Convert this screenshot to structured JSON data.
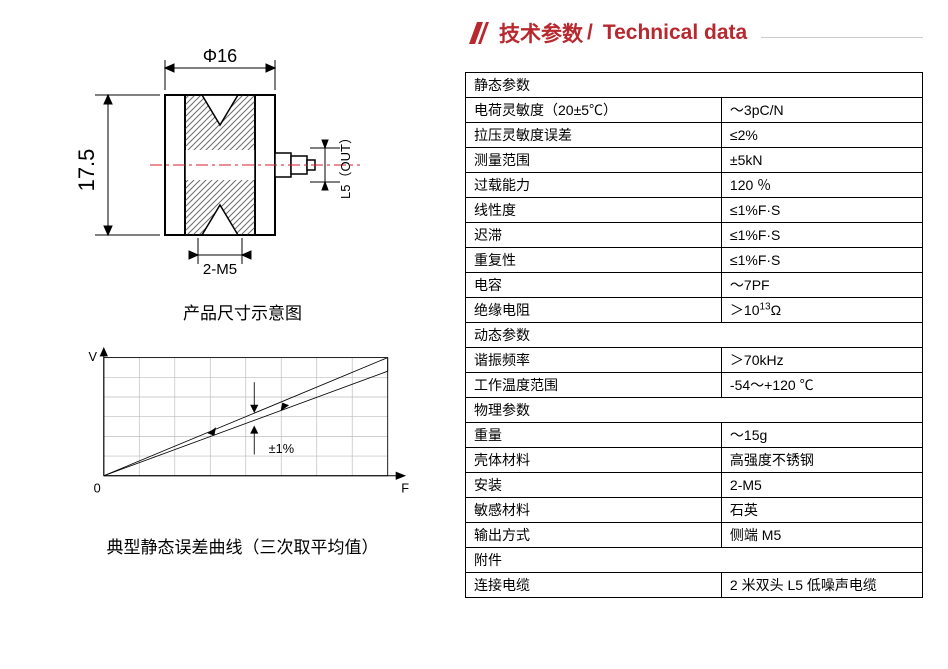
{
  "header": {
    "zh": "技术参数",
    "sep": "/",
    "en": "Technical data"
  },
  "colors": {
    "accent": "#b8292f",
    "table_border": "#000000",
    "grid": "#bdbdbd",
    "hatch": "#6c6c6c",
    "centerline": "#d81e2a"
  },
  "dim_drawing": {
    "phi_label": "Φ16",
    "height_label": "17.5",
    "thread_label": "2-M5",
    "out_label": "L5（OUT）",
    "caption": "产品尺寸示意图"
  },
  "error_curve": {
    "y_axis": "V",
    "x_axis": "F",
    "origin": "0",
    "tol_label": "±1%",
    "caption": "典型静态误差曲线（三次取平均值）",
    "grid_cols": 8,
    "grid_rows": 6
  },
  "spec_sections": [
    {
      "title": "静态参数",
      "rows": [
        [
          "电荷灵敏度（20±5℃）",
          "～3pC/N"
        ],
        [
          "拉压灵敏度误差",
          "≤2%"
        ],
        [
          "测量范围",
          "±5kN"
        ],
        [
          "过载能力",
          "120 ％"
        ],
        [
          "线性度",
          "≤1%F·S"
        ],
        [
          "迟滞",
          "≤1%F·S"
        ],
        [
          "重复性",
          "≤1%F·S"
        ],
        [
          "电容",
          "～7PF"
        ],
        [
          "绝缘电阻",
          "＞10<sup>13</sup>Ω"
        ]
      ]
    },
    {
      "title": "动态参数",
      "rows": [
        [
          "谐振频率",
          "＞70kHz"
        ],
        [
          "工作温度范围",
          "-54～+120 ℃"
        ]
      ]
    },
    {
      "title": "物理参数",
      "rows": [
        [
          "重量",
          "～15g"
        ],
        [
          "壳体材料",
          "高强度不锈钢"
        ],
        [
          "安装",
          "2-M5"
        ],
        [
          "敏感材料",
          "石英"
        ],
        [
          "输出方式",
          "侧端 M5"
        ]
      ]
    },
    {
      "title": "附件",
      "rows": [
        [
          "连接电缆",
          "2 米双头 L5 低噪声电缆"
        ]
      ]
    }
  ]
}
